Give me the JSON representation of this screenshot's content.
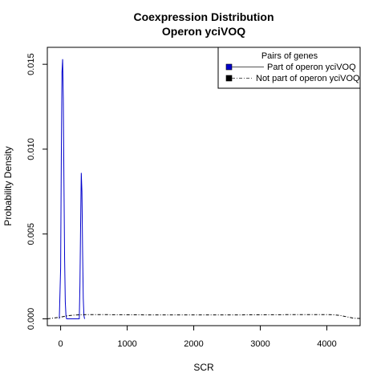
{
  "chart_data": {
    "type": "line",
    "title": "Coexpression Distribution",
    "subtitle": "Operon yciVOQ",
    "xlabel": "SCR",
    "ylabel": "Probability Density",
    "xlim": [
      -200,
      4500
    ],
    "ylim": [
      -0.0004,
      0.016
    ],
    "x_ticks": [
      0,
      1000,
      2000,
      3000,
      4000
    ],
    "x_tick_labels": [
      "0",
      "1000",
      "2000",
      "3000",
      "4000"
    ],
    "y_ticks": [
      0.0,
      0.005,
      0.01,
      0.015
    ],
    "y_tick_labels": [
      "0.000",
      "0.005",
      "0.010",
      "0.015"
    ],
    "grid": false,
    "legend": {
      "title": "Pairs of genes",
      "position": "top-right",
      "entries": [
        "Part of operon yciVOQ",
        "Not part of operon yciVOQ"
      ]
    },
    "series": [
      {
        "name": "Part of operon yciVOQ",
        "color": "#0000cc",
        "line_style": "solid",
        "x": [
          -20,
          0,
          10,
          20,
          30,
          40,
          50,
          60,
          70,
          80,
          90,
          100,
          120,
          200,
          280,
          290,
          300,
          310,
          320,
          330,
          340,
          350,
          360
        ],
        "y": [
          0,
          0.003,
          0.0095,
          0.0145,
          0.0153,
          0.013,
          0.008,
          0.0035,
          0.001,
          0.0002,
          0,
          0,
          0,
          0,
          0,
          0.002,
          0.0055,
          0.0086,
          0.0075,
          0.004,
          0.0012,
          0.0002,
          0
        ]
      },
      {
        "name": "Not part of operon yciVOQ",
        "color": "#000000",
        "line_style": "dashed",
        "x": [
          -200,
          0,
          100,
          200,
          300,
          400,
          600,
          1000,
          1500,
          2000,
          2500,
          3000,
          3500,
          4000,
          4100,
          4200,
          4300,
          4400,
          4500
        ],
        "y": [
          0,
          0.0001,
          0.00018,
          0.00022,
          0.00024,
          0.00025,
          0.00025,
          0.00024,
          0.00023,
          0.00023,
          0.00023,
          0.00024,
          0.00025,
          0.00025,
          0.00024,
          0.0002,
          0.00012,
          4e-05,
          2e-05
        ]
      }
    ]
  }
}
